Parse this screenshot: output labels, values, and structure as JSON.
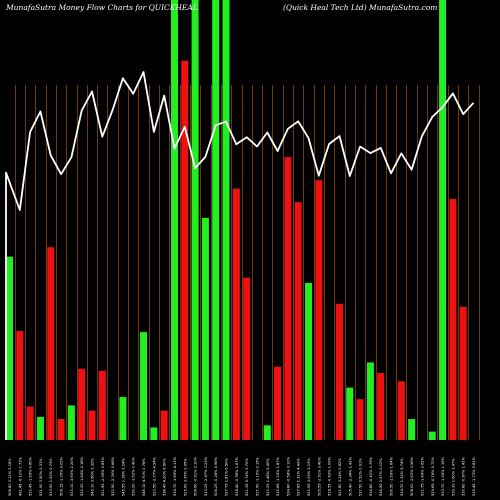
{
  "chart_data": {
    "type": "bar",
    "title_left": "MunafaSutra  Money Flow  Charts for QUICKHEAL",
    "title_right": "(Quick Heal Tech Ltd) MunafaSutra.com",
    "colors": {
      "background": "#000000",
      "up_bar": "#22ee22",
      "down_bar": "#ee1111",
      "grid_line": "#c06010",
      "price_line": "#ffffff"
    },
    "categories": [
      "506.80 3.12% 3.16%",
      "491.45 -6.12% 1.73%",
      "523.45 -1.59% 0.60%",
      "531.90 3.50% 0.31%",
      "513.90 1.53% 0.73%",
      "506.15 -1.35% 3.05%",
      "513.10 -3.60% 2.20%",
      "532.30 -1.44% 2.18%",
      "540.10 3.56% 1.32%",
      "521.55 -2.06% 0.85%",
      "532.50 -2.39% 0.66%",
      "545.55 1.18% 1.24%",
      "539.20 -1.62% 0.40%",
      "548.10 4.70% 0.78%",
      "523.50 -2.77% 4.54%",
      "538.40 4.20% 6.60%",
      "516.70 -1.69% 4.13%",
      "525.60 3.35% 0.95%",
      "508.60 -0.91% 2.10%",
      "513.25 -2.47% 3.23%",
      "526.25 -0.28% 0.98%",
      "527.75 1.81% 6.50%",
      "518.40 -0.56% 1.67%",
      "521.35 0.74% 0.70%",
      "517.50 -1.10% 0.15%",
      "523.25 1.48% 5.40%",
      "515.65 -1.74% 1.87%",
      "524.80 -0.58% 3.12%",
      "527.85 1.32% 4.49%",
      "520.95 3.05% 3.13%",
      "505.55 -2.51% 3.40%",
      "518.55 -0.63% 1.09%",
      "521.80 3.24% 0.62%",
      "505.40 -2.34% 1.42%",
      "517.50 0.52% 0.91%",
      "514.80 -0.41% 3.79%",
      "516.95 2.07% 0.12%",
      "506.50 -1.59% 1.64%",
      "514.70 1.32% 6.74%",
      "508.00 -2.63% 3.56%",
      "521.75 -1.49% 2.62%",
      "529.65 -0.76% 5.72%",
      "533.70 -1.04% 1.19%",
      "539.30 1.60% 1.47%",
      "530.80 -0.87% 1.42%",
      "535.45 -1.73% 0.81%"
    ],
    "series": [
      {
        "color": "up_bar",
        "values": [
          175,
          0,
          0,
          22,
          0,
          0,
          33,
          0,
          0,
          0,
          0,
          41,
          0,
          103,
          12,
          0,
          999,
          0,
          999,
          212,
          999,
          999,
          0,
          0,
          0,
          14,
          0,
          0,
          0,
          150,
          0,
          0,
          0,
          50,
          0,
          74,
          0,
          0,
          0,
          20,
          0,
          8,
          999,
          0,
          0,
          0
        ]
      },
      {
        "color": "down_bar",
        "values": [
          0,
          104,
          32,
          0,
          184,
          20,
          0,
          68,
          28,
          66,
          0,
          0,
          0,
          0,
          0,
          28,
          0,
          362,
          0,
          0,
          0,
          0,
          240,
          155,
          0,
          0,
          70,
          270,
          227,
          0,
          248,
          0,
          130,
          0,
          39,
          0,
          64,
          0,
          56,
          0,
          0,
          0,
          0,
          230,
          127,
          0
        ]
      },
      {
        "name": "Price",
        "type": "line",
        "values": [
          506.8,
          491.45,
          523.45,
          531.9,
          513.9,
          506.15,
          513.1,
          532.3,
          540.1,
          521.55,
          532.5,
          545.55,
          539.2,
          548.1,
          523.5,
          538.4,
          516.7,
          525.6,
          508.6,
          513.25,
          526.25,
          527.75,
          518.4,
          521.35,
          517.5,
          523.25,
          515.65,
          524.8,
          527.85,
          520.95,
          505.55,
          518.55,
          521.8,
          505.4,
          517.5,
          514.8,
          516.95,
          506.5,
          514.7,
          508.0,
          521.75,
          529.65,
          533.7,
          539.3,
          530.8,
          535.45
        ]
      }
    ],
    "bar_max": 420,
    "grid": true,
    "legend": "none"
  }
}
